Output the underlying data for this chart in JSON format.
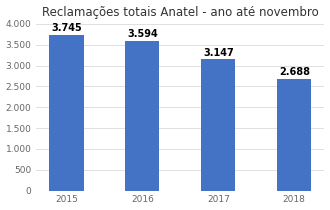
{
  "title": "Reclamações totais Anatel - ano até novembro",
  "categories": [
    "2015",
    "2016",
    "2017",
    "2018"
  ],
  "values": [
    3745,
    3594,
    3147,
    2688
  ],
  "labels": [
    "3.745",
    "3.594",
    "3.147",
    "2.688"
  ],
  "bar_color": "#4472C4",
  "background_color": "#ffffff",
  "grid_color": "#e0e0e0",
  "ylim": [
    0,
    4000
  ],
  "yticks": [
    0,
    500,
    1000,
    1500,
    2000,
    2500,
    3000,
    3500,
    4000
  ],
  "ytick_labels": [
    "0",
    "500",
    "1.000",
    "1.500",
    "2.000",
    "2.500",
    "3.000",
    "3.500",
    "4.000"
  ],
  "title_fontsize": 8.5,
  "label_fontsize": 7.0,
  "tick_fontsize": 6.5,
  "bar_width": 0.45
}
